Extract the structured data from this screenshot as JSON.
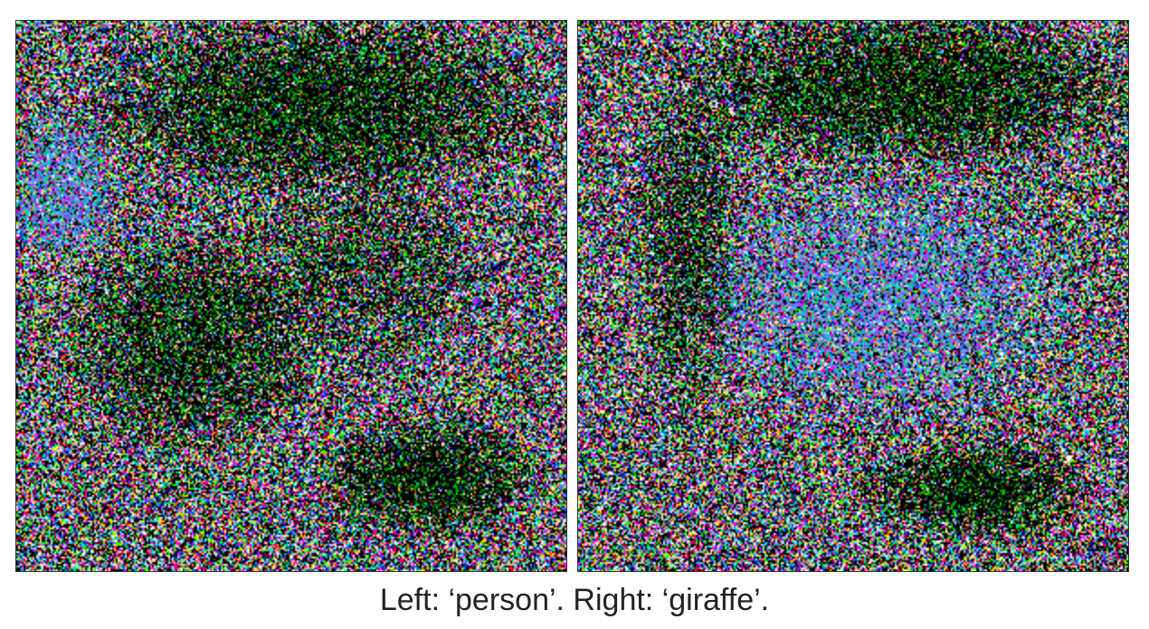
{
  "caption": "Left: ‘person’. Right: ‘giraffe’.",
  "panels": [
    {
      "position": "left",
      "label": "person",
      "content": "colorful noise-like visualization pattern"
    },
    {
      "position": "right",
      "label": "giraffe",
      "content": "colorful noise-like visualization pattern"
    }
  ],
  "colors": {
    "background": "#ffffff",
    "panel_background": "#000000",
    "caption_text": "#222222"
  }
}
